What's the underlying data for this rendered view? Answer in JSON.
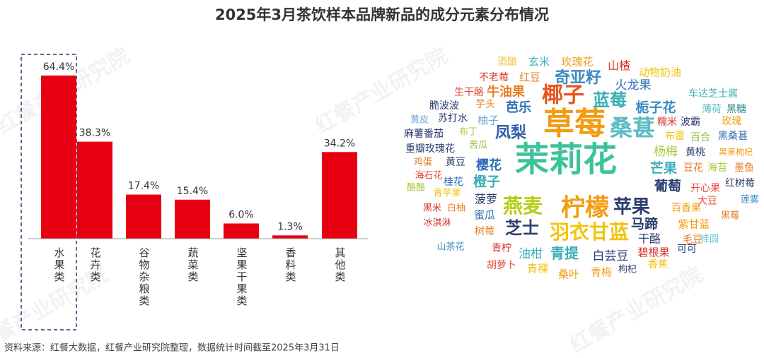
{
  "title": "2025年3月茶饮样本品牌新品的成分元素分布情况",
  "source": "资料来源：红餐大数据，红餐产业研究院整理，数据统计时间截至2025年3月31日",
  "watermark": "红餐产业研究院",
  "chart_data": [
    {
      "type": "bar",
      "categories": [
        "水果类",
        "花卉类",
        "谷物杂粮类",
        "蔬菜类",
        "坚果干果类",
        "香料类",
        "其他类"
      ],
      "values": [
        64.4,
        38.3,
        17.4,
        15.4,
        6.0,
        1.3,
        34.2
      ],
      "value_labels": [
        "64.4%",
        "38.3%",
        "17.4%",
        "15.4%",
        "6.0%",
        "1.3%",
        "34.2%"
      ],
      "color": "#e60012"
    },
    {
      "type": "wordcloud",
      "words": [
        {
          "text": "酒酿",
          "color": "#f5c242"
        },
        {
          "text": "玄米",
          "color": "#3aaeb6"
        },
        {
          "text": "玫瑰花",
          "color": "#f39c12"
        },
        {
          "text": "山楂",
          "color": "#d9342b"
        },
        {
          "text": "动物奶油",
          "color": "#f1c40f"
        },
        {
          "text": "不老莓",
          "color": "#d9342b"
        },
        {
          "text": "红豆",
          "color": "#e67e22"
        },
        {
          "text": "奇亚籽",
          "color": "#3a8bc2"
        },
        {
          "text": "火龙果",
          "color": "#2e6db4"
        },
        {
          "text": "生干酪",
          "color": "#e74c3c"
        },
        {
          "text": "牛油果",
          "color": "#e67e22"
        },
        {
          "text": "椰子",
          "color": "#e8551f"
        },
        {
          "text": "蓝莓",
          "color": "#3aaeb6"
        },
        {
          "text": "车达芝士酱",
          "color": "#3aaeb6"
        },
        {
          "text": "脆波波",
          "color": "#2c3e70"
        },
        {
          "text": "芋头",
          "color": "#e67e22"
        },
        {
          "text": "芭乐",
          "color": "#2e6db4"
        },
        {
          "text": "栀子花",
          "color": "#3a8bc2"
        },
        {
          "text": "薄荷",
          "color": "#5bbbc5"
        },
        {
          "text": "黑糖",
          "color": "#2b8c8c"
        },
        {
          "text": "黄皮",
          "color": "#6fa8dc"
        },
        {
          "text": "苏打水",
          "color": "#2c3e70"
        },
        {
          "text": "柚子",
          "color": "#6fa8dc"
        },
        {
          "text": "草莓",
          "color": "#f39c12"
        },
        {
          "text": "桑葚",
          "color": "#5bbbc5"
        },
        {
          "text": "糯米",
          "color": "#d9342b"
        },
        {
          "text": "波霸",
          "color": "#2c3e70"
        },
        {
          "text": "玫瑰",
          "color": "#f39c12"
        },
        {
          "text": "麻薯番茄",
          "color": "#2c3e70"
        },
        {
          "text": "布丁",
          "color": "#a8c93a"
        },
        {
          "text": "凤梨",
          "color": "#2e5fa8"
        },
        {
          "text": "布蕾",
          "color": "#f1c40f"
        },
        {
          "text": "百合",
          "color": "#8bbf3a"
        },
        {
          "text": "黑桑葚",
          "color": "#2e6db4"
        },
        {
          "text": "重瓣玫瑰花",
          "color": "#2c3e70"
        },
        {
          "text": "苦瓜",
          "color": "#8bbf3a"
        },
        {
          "text": "杨梅",
          "color": "#a8c93a"
        },
        {
          "text": "黄桃",
          "color": "#2c3e70"
        },
        {
          "text": "黑果枸杞",
          "color": "#f39c12"
        },
        {
          "text": "茉莉花",
          "color": "#3cc39a"
        },
        {
          "text": "鸡蛋",
          "color": "#e67e22"
        },
        {
          "text": "黄豆",
          "color": "#2c3e70"
        },
        {
          "text": "樱花",
          "color": "#2e6db4"
        },
        {
          "text": "芒果",
          "color": "#3aaeb6"
        },
        {
          "text": "豆花",
          "color": "#e67e22"
        },
        {
          "text": "海苔",
          "color": "#a8c93a"
        },
        {
          "text": "墨鱼",
          "color": "#e67e22"
        },
        {
          "text": "海石花",
          "color": "#e74c3c"
        },
        {
          "text": "桂花",
          "color": "#2e6db4"
        },
        {
          "text": "橙子",
          "color": "#3aaeb6"
        },
        {
          "text": "葡萄",
          "color": "#2c3e70"
        },
        {
          "text": "开心果",
          "color": "#e74c3c"
        },
        {
          "text": "红树莓",
          "color": "#2c3e70"
        },
        {
          "text": "酪酪",
          "color": "#a8c93a"
        },
        {
          "text": "青苹果",
          "color": "#f1c40f"
        },
        {
          "text": "燕麦",
          "color": "#b5cc18"
        },
        {
          "text": "柠檬",
          "color": "#f39c12"
        },
        {
          "text": "苹果",
          "color": "#2c3e70"
        },
        {
          "text": "大豆",
          "color": "#e74c3c"
        },
        {
          "text": "百香果",
          "color": "#f39c12"
        },
        {
          "text": "菠萝",
          "color": "#2c3e70"
        },
        {
          "text": "莲雾",
          "color": "#3a8bc2"
        },
        {
          "text": "黑米",
          "color": "#d9342b"
        },
        {
          "text": "白柚",
          "color": "#e67e22"
        },
        {
          "text": "蜜瓜",
          "color": "#2e6db4"
        },
        {
          "text": "黑莓",
          "color": "#e67e22"
        },
        {
          "text": "冰淇淋",
          "color": "#d9342b"
        },
        {
          "text": "芝士",
          "color": "#2c3e70"
        },
        {
          "text": "羽衣甘蓝",
          "color": "#f1c40f"
        },
        {
          "text": "马蹄",
          "color": "#2c3e70"
        },
        {
          "text": "紫甘蓝",
          "color": "#f39c12"
        },
        {
          "text": "树莓",
          "color": "#e67e22"
        },
        {
          "text": "干酪",
          "color": "#2c3e70"
        },
        {
          "text": "桂圆",
          "color": "#6fc8d0"
        },
        {
          "text": "毛豆",
          "color": "#e67e22"
        },
        {
          "text": "山茶花",
          "color": "#3a8bc2"
        },
        {
          "text": "青柠",
          "color": "#d9342b"
        },
        {
          "text": "油柑",
          "color": "#3aaeb6"
        },
        {
          "text": "青提",
          "color": "#3aaeb6"
        },
        {
          "text": "白芸豆",
          "color": "#2c3e70"
        },
        {
          "text": "碧根果",
          "color": "#d9342b"
        },
        {
          "text": "可可",
          "color": "#2c3e70"
        },
        {
          "text": "胡萝卜",
          "color": "#e74c3c"
        },
        {
          "text": "青稞",
          "color": "#f1c40f"
        },
        {
          "text": "桑叶",
          "color": "#f39c12"
        },
        {
          "text": "青梅",
          "color": "#f39c12"
        },
        {
          "text": "枸杞",
          "color": "#2c3e70"
        },
        {
          "text": "香蕉",
          "color": "#f1c40f"
        }
      ]
    }
  ]
}
